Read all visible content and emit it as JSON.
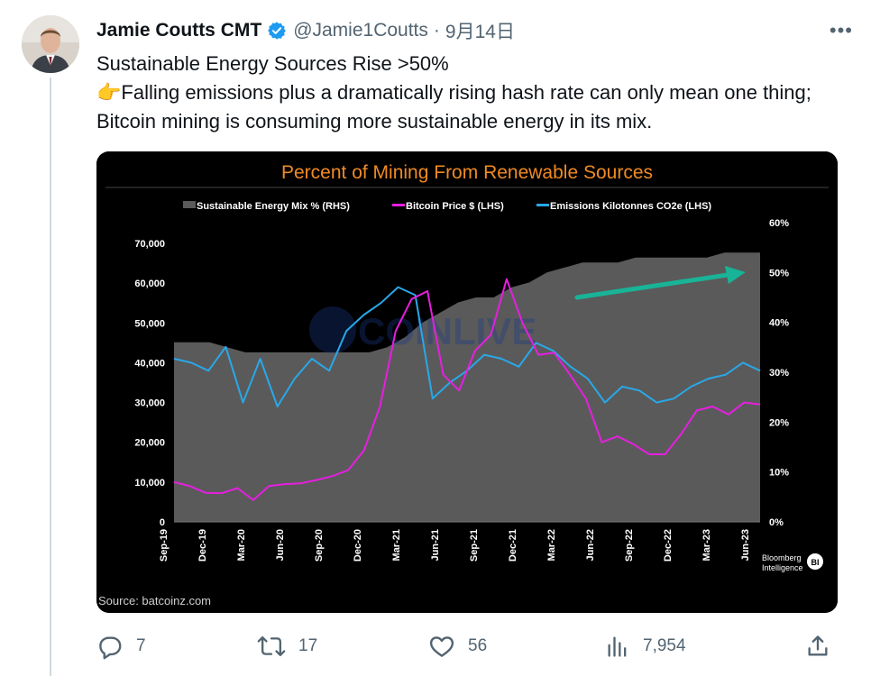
{
  "tweet": {
    "author_name": "Jamie Coutts CMT",
    "handle": "@Jamie1Coutts",
    "separator": "·",
    "date": "9月14日",
    "more_label": "•••",
    "text_line1": "Sustainable Energy Sources Rise >50%",
    "text_line2": "👉Falling emissions plus a dramatically rising hash rate can only mean one thing; Bitcoin mining is consuming more sustainable energy in its mix."
  },
  "chart": {
    "title": "Percent of Mining From Renewable Sources",
    "legend": [
      "Sustainable Energy Mix % (RHS)",
      "Bitcoin Price $ (LHS)",
      "Emissions Kilotonnes CO2e (LHS)"
    ],
    "left_ticks": [
      "70,000",
      "60,000",
      "50,000",
      "40,000",
      "30,000",
      "20,000",
      "10,000",
      "0"
    ],
    "right_ticks": [
      "60%",
      "50%",
      "40%",
      "30%",
      "20%",
      "10%",
      "0%"
    ],
    "x_ticks": [
      "Sep-19",
      "Dec-19",
      "Mar-20",
      "Jun-20",
      "Sep-20",
      "Dec-20",
      "Mar-21",
      "Jun-21",
      "Sep-21",
      "Dec-21",
      "Mar-22",
      "Jun-22",
      "Sep-22",
      "Dec-22",
      "Mar-23",
      "Jun-23"
    ],
    "source": "Source: batcoinz.com",
    "brand_line1": "Bloomberg",
    "brand_line2": "Intelligence",
    "brand_badge": "BI",
    "watermark": "COINLIVE",
    "colors": {
      "background": "#000000",
      "title": "#f08a24",
      "area": "#5a5a5a",
      "price": "#e61fe0",
      "emissions": "#29a8e8",
      "arrow": "#19b397"
    }
  },
  "chart_data": {
    "type": "line",
    "x_start": "Sep-19",
    "x_end": "Sep-23",
    "left_ylim": [
      0,
      70000
    ],
    "right_ylim": [
      0,
      60
    ],
    "series": [
      {
        "name": "Sustainable Energy Mix % (RHS)",
        "kind": "area",
        "axis": "right",
        "values": [
          36,
          36,
          36,
          35,
          34,
          34,
          34,
          34,
          34,
          34,
          34,
          34,
          35,
          37,
          40,
          42,
          44,
          45,
          45,
          47,
          48,
          50,
          51,
          52,
          52,
          52,
          53,
          53,
          53,
          53,
          53,
          54,
          54,
          54
        ]
      },
      {
        "name": "Bitcoin Price $ (LHS)",
        "kind": "line",
        "axis": "left",
        "values": [
          10000,
          9000,
          7300,
          7200,
          8500,
          5500,
          9000,
          9500,
          9700,
          10500,
          11500,
          13000,
          18000,
          29000,
          48000,
          56000,
          58000,
          37000,
          33000,
          43000,
          47000,
          61000,
          50000,
          42000,
          42500,
          37000,
          31000,
          20000,
          21500,
          19500,
          17000,
          17000,
          22000,
          28000,
          29000,
          27000,
          30000,
          29500
        ]
      },
      {
        "name": "Emissions Kilotonnes CO2e (LHS)",
        "kind": "line",
        "axis": "left",
        "values": [
          41000,
          40000,
          38000,
          44000,
          30000,
          41000,
          29000,
          36000,
          41000,
          38000,
          48000,
          52000,
          55000,
          59000,
          57000,
          31000,
          35000,
          38000,
          42000,
          41000,
          39000,
          45000,
          43000,
          39000,
          36000,
          30000,
          34000,
          33000,
          30000,
          31000,
          34000,
          36000,
          37000,
          40000,
          38000
        ]
      }
    ],
    "legend_position": "top"
  },
  "actions": {
    "reply_count": "7",
    "retweet_count": "17",
    "like_count": "56",
    "views_count": "7,954"
  }
}
